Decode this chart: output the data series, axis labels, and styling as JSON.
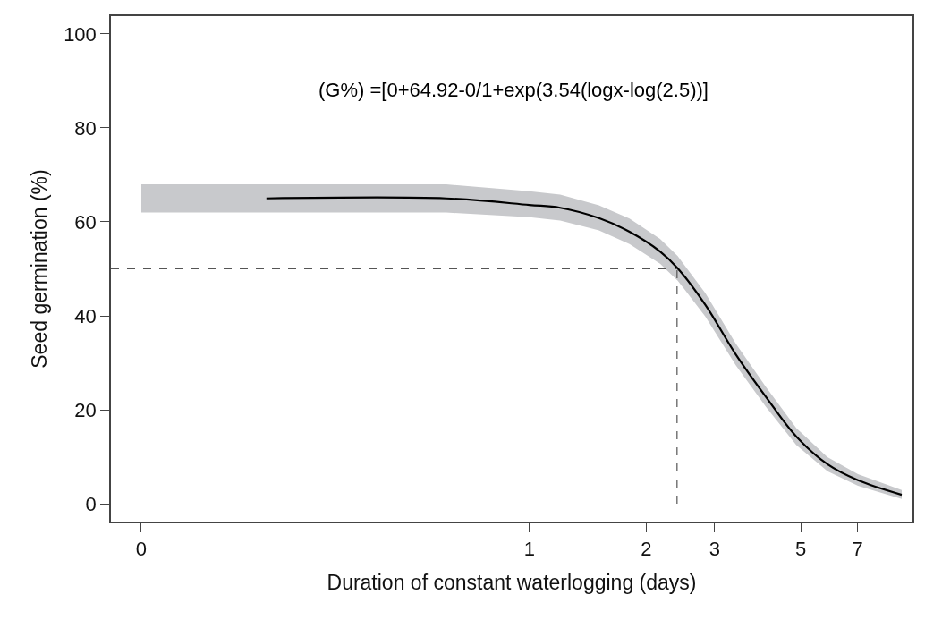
{
  "chart_data": {
    "type": "line",
    "xlabel": "Duration of constant waterlogging (days)",
    "ylabel": "Seed germination (%)",
    "annotations": [
      "(G%) =[0+64.92-0/1+exp(3.54(logx-log(2.5))]"
    ],
    "log": "x",
    "xlim": [
      0.0835,
      9.7
    ],
    "xticks": [
      {
        "value": 0.1,
        "label": "0"
      },
      1,
      2,
      3,
      5,
      7
    ],
    "ylim": [
      -3.8,
      103.8
    ],
    "yticks": [
      0,
      20,
      40,
      60,
      80,
      100
    ],
    "marker": "none",
    "series": [
      {
        "color": "#000000",
        "line_style": "solid",
        "x": [
          0.1,
          0.21,
          0.61,
          1.0,
          1.2,
          1.51,
          1.81,
          2.17,
          2.41,
          2.84,
          3.4,
          4.07,
          4.87,
          5.86,
          7.02,
          9.1
        ],
        "values": [
          null,
          65,
          65,
          63.6,
          63.0,
          60.8,
          57.9,
          53.7,
          50.1,
          42.3,
          31.8,
          22.7,
          14.3,
          8.4,
          5.0,
          1.9
        ],
        "lower": [
          62,
          62,
          62,
          61,
          60.3,
          58.2,
          55.3,
          51.1,
          47.5,
          39.8,
          29.5,
          20.6,
          12.5,
          6.9,
          3.8,
          1.0
        ],
        "upper": [
          68,
          68,
          68,
          66.5,
          65.8,
          63.5,
          60.7,
          56.4,
          52.7,
          44.8,
          34.1,
          24.8,
          16.1,
          9.9,
          6.3,
          2.9
        ]
      }
    ],
    "ref_lines": [
      {
        "axis": "y",
        "value": 50,
        "color": "#555555",
        "line_style": "dashed"
      },
      {
        "axis": "x",
        "value": 2.4,
        "color": "#555555",
        "line_style": "dashed"
      }
    ]
  }
}
